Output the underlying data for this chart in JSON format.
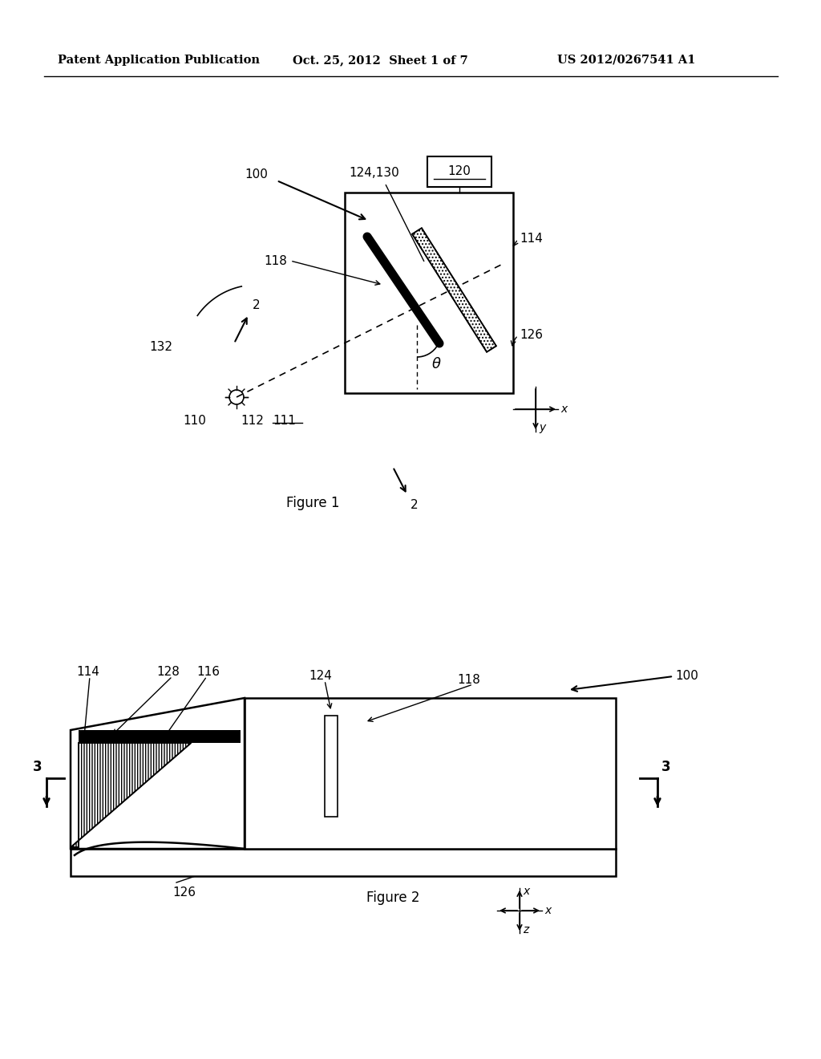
{
  "bg_color": "#ffffff",
  "header_left": "Patent Application Publication",
  "header_mid": "Oct. 25, 2012  Sheet 1 of 7",
  "header_right": "US 2012/0267541 A1",
  "fig1_caption": "Figure 1",
  "fig2_caption": "Figure 2"
}
